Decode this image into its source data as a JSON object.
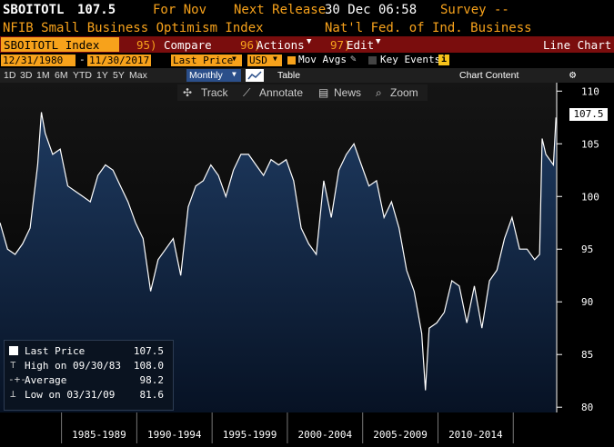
{
  "header": {
    "ticker": "SBOITOTL",
    "last_value": "107.5",
    "period_label": "For Nov",
    "next_release_label": "Next Release",
    "next_release_value": "30 Dec 06:58",
    "survey_label": "Survey --",
    "index_name": "NFIB Small Business Optimism Index",
    "source": "Nat'l Fed. of Ind. Business"
  },
  "toolbar": {
    "ticker_box": "SBOITOTL Index",
    "compare_num": "95)",
    "compare_label": "Compare",
    "actions_num": "96)",
    "actions_label": "Actions",
    "edit_num": "97)",
    "edit_label": "Edit",
    "chart_type": "Line Chart"
  },
  "range_bar": {
    "start_date": "12/31/1980",
    "end_date": "11/30/2017",
    "price_field": "Last Price",
    "currency": "USD",
    "mov_avgs": "Mov Avgs",
    "key_events": "Key Events",
    "info": "i"
  },
  "period_bar": {
    "periods": [
      "1D",
      "3D",
      "1M",
      "6M",
      "YTD",
      "1Y",
      "5Y",
      "Max"
    ],
    "frequency": "Monthly",
    "table_label": "Table",
    "chart_content_label": "Chart Content",
    "gear": "⚙"
  },
  "chart_tools": {
    "track": "Track",
    "annotate": "Annotate",
    "news": "News",
    "zoom": "Zoom"
  },
  "legend": {
    "last_label": "Last Price",
    "last_value": "107.5",
    "high_label": "High on 09/30/83",
    "high_value": "108.0",
    "avg_label": "Average",
    "avg_value": "98.2",
    "low_label": "Low on 03/31/09",
    "low_value": "81.6"
  },
  "chart_data": {
    "type": "area",
    "series": [
      {
        "name": "Last Price",
        "x": [
          "1980-12",
          "1981-06",
          "1981-12",
          "1982-06",
          "1982-12",
          "1983-06",
          "1983-09",
          "1983-12",
          "1984-06",
          "1984-12",
          "1985-06",
          "1985-12",
          "1986-06",
          "1986-12",
          "1987-06",
          "1987-12",
          "1988-06",
          "1988-12",
          "1989-06",
          "1989-12",
          "1990-06",
          "1990-12",
          "1991-06",
          "1991-12",
          "1992-06",
          "1992-12",
          "1993-06",
          "1993-12",
          "1994-06",
          "1994-12",
          "1995-06",
          "1995-12",
          "1996-06",
          "1996-12",
          "1997-06",
          "1997-12",
          "1998-06",
          "1998-12",
          "1999-06",
          "1999-12",
          "2000-06",
          "2000-12",
          "2001-06",
          "2001-12",
          "2002-06",
          "2002-12",
          "2003-06",
          "2003-12",
          "2004-06",
          "2004-12",
          "2005-06",
          "2005-12",
          "2006-06",
          "2006-12",
          "2007-06",
          "2007-12",
          "2008-06",
          "2008-12",
          "2009-03",
          "2009-06",
          "2009-12",
          "2010-06",
          "2010-12",
          "2011-06",
          "2011-12",
          "2012-06",
          "2012-12",
          "2013-06",
          "2013-12",
          "2014-06",
          "2014-12",
          "2015-06",
          "2015-12",
          "2016-06",
          "2016-10",
          "2016-12",
          "2017-03",
          "2017-06",
          "2017-09",
          "2017-11"
        ],
        "values": [
          97.5,
          95,
          94.5,
          95.5,
          97,
          103,
          108,
          106,
          104,
          104.5,
          101,
          100.5,
          100,
          99.5,
          102,
          103,
          102.5,
          101,
          99.5,
          97.5,
          96,
          91,
          94,
          95,
          96,
          92.5,
          99,
          101,
          101.5,
          103,
          102,
          100,
          102.5,
          104,
          104,
          103,
          102,
          103.5,
          103,
          103.5,
          101.5,
          97,
          95.5,
          94.5,
          101.5,
          98,
          102.5,
          104,
          105,
          103,
          101,
          101.5,
          98,
          99.5,
          97,
          93,
          91,
          87,
          81.6,
          87.5,
          88,
          89,
          92,
          91.5,
          88,
          91.5,
          87.5,
          92,
          93,
          96,
          98,
          95,
          95,
          94,
          94.5,
          105.5,
          104,
          103.5,
          103,
          107.5
        ]
      }
    ],
    "xlabel_ticks": [
      "1985-1989",
      "1990-1994",
      "1995-1999",
      "2000-2004",
      "2005-2009",
      "2010-2014"
    ],
    "y_ticks": [
      80,
      85,
      90,
      95,
      100,
      105,
      110
    ],
    "ylim": [
      79.5,
      110.8
    ],
    "last_value_label": "107.5"
  },
  "colors": {
    "amber": "#f7a21b",
    "header_red": "#7a0d0d",
    "line": "#ffffff",
    "fill_top": "#1e3a60",
    "fill_bottom": "#071224"
  }
}
